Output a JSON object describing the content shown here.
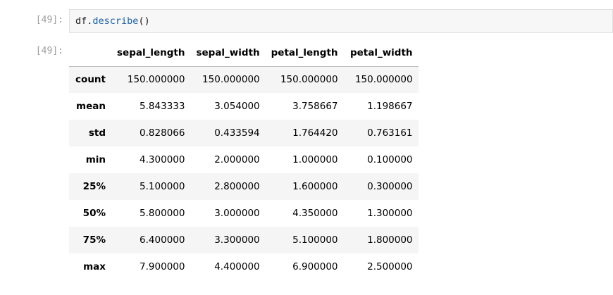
{
  "cell": {
    "input_prompt": "[49]:",
    "output_prompt": "[49]:",
    "code": {
      "object": "df",
      "dot": ".",
      "method": "describe",
      "args": "()"
    }
  },
  "table": {
    "index_header": "",
    "columns": [
      "sepal_length",
      "sepal_width",
      "petal_length",
      "petal_width"
    ],
    "rows": [
      {
        "label": "count",
        "values": [
          "150.000000",
          "150.000000",
          "150.000000",
          "150.000000"
        ]
      },
      {
        "label": "mean",
        "values": [
          "5.843333",
          "3.054000",
          "3.758667",
          "1.198667"
        ]
      },
      {
        "label": "std",
        "values": [
          "0.828066",
          "0.433594",
          "1.764420",
          "0.763161"
        ]
      },
      {
        "label": "min",
        "values": [
          "4.300000",
          "2.000000",
          "1.000000",
          "0.100000"
        ]
      },
      {
        "label": "25%",
        "values": [
          "5.100000",
          "2.800000",
          "1.600000",
          "0.300000"
        ]
      },
      {
        "label": "50%",
        "values": [
          "5.800000",
          "3.000000",
          "4.350000",
          "1.300000"
        ]
      },
      {
        "label": "75%",
        "values": [
          "6.400000",
          "3.300000",
          "5.100000",
          "1.800000"
        ]
      },
      {
        "label": "max",
        "values": [
          "7.900000",
          "4.400000",
          "6.900000",
          "2.500000"
        ]
      }
    ]
  }
}
